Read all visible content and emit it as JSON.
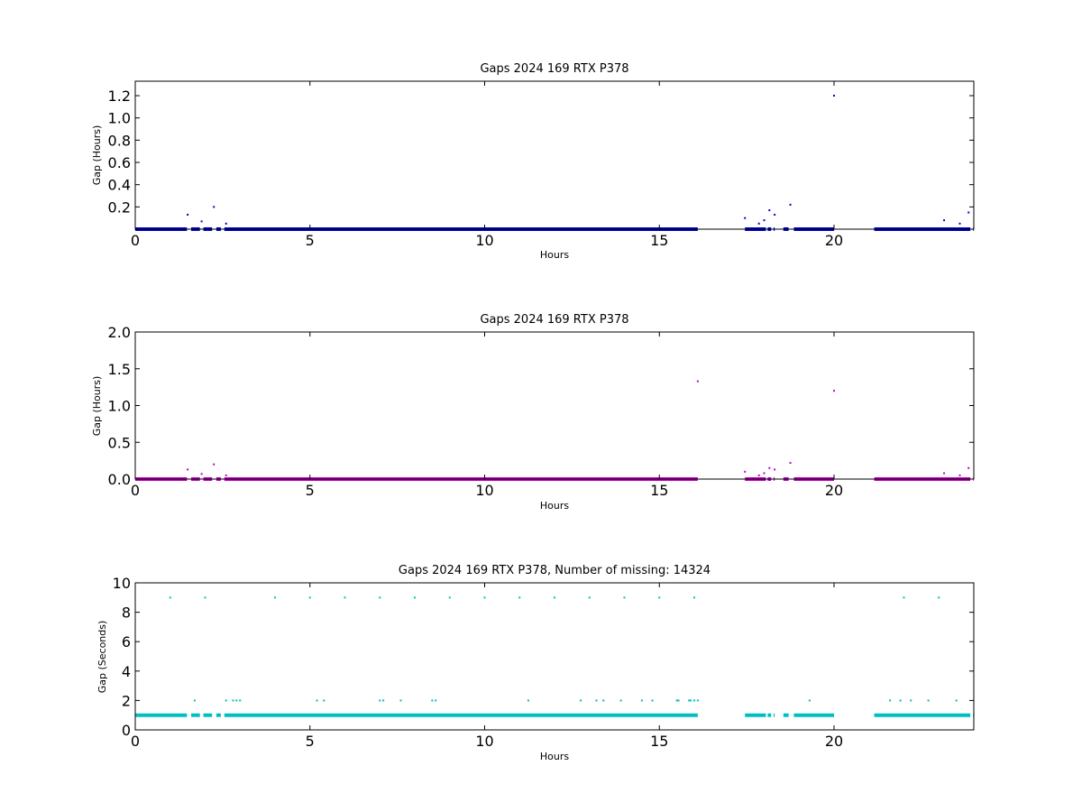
{
  "chart_data": [
    {
      "type": "scatter",
      "title": "Gaps 2024 169 RTX  P378",
      "xlabel": "Hours",
      "ylabel": "Gap (Hours)",
      "xlim": [
        0,
        24
      ],
      "ylim": [
        0,
        1.33
      ],
      "xticks": [
        0,
        5,
        10,
        15,
        20
      ],
      "xtick_labels": [
        "0",
        "5",
        "10",
        "15",
        "20"
      ],
      "yticks": [
        0.2,
        0.4,
        0.6,
        0.8,
        1.0,
        1.2
      ],
      "ytick_labels": [
        "0.2",
        "0.4",
        "0.6",
        "0.8",
        "1.0",
        "1.2"
      ],
      "color": "#0000cc",
      "grid": false,
      "baseline": {
        "y": 0.0003,
        "segments": [
          [
            0,
            1.48
          ],
          [
            1.6,
            1.85
          ],
          [
            1.95,
            2.2
          ],
          [
            2.32,
            2.45
          ],
          [
            2.55,
            16.1
          ],
          [
            17.45,
            18.05
          ],
          [
            18.1,
            18.2
          ],
          [
            18.27,
            18.3
          ],
          [
            18.55,
            18.7
          ],
          [
            18.85,
            20.0
          ],
          [
            21.15,
            23.9
          ],
          [
            23.98,
            24
          ]
        ]
      },
      "points": [
        [
          1.5,
          0.13
        ],
        [
          1.9,
          0.07
        ],
        [
          2.25,
          0.2
        ],
        [
          2.6,
          0.05
        ],
        [
          17.45,
          0.1
        ],
        [
          17.85,
          0.05
        ],
        [
          18.0,
          0.08
        ],
        [
          18.15,
          0.17
        ],
        [
          18.3,
          0.13
        ],
        [
          18.75,
          0.22
        ],
        [
          20.0,
          1.2
        ],
        [
          23.15,
          0.08
        ],
        [
          23.6,
          0.05
        ],
        [
          23.85,
          0.15
        ]
      ]
    },
    {
      "type": "scatter",
      "title": "Gaps 2024 169 RTX  P378",
      "xlabel": "Hours",
      "ylabel": "Gap (Hours)",
      "xlim": [
        0,
        24
      ],
      "ylim": [
        0,
        2.0
      ],
      "xticks": [
        0,
        5,
        10,
        15,
        20
      ],
      "xtick_labels": [
        "0",
        "5",
        "10",
        "15",
        "20"
      ],
      "yticks": [
        0.0,
        0.5,
        1.0,
        1.5,
        2.0
      ],
      "ytick_labels": [
        "0.0",
        "0.5",
        "1.0",
        "1.5",
        "2.0"
      ],
      "color": "#bf00bf",
      "grid": false,
      "baseline": {
        "y": 0.0003,
        "segments": [
          [
            0,
            1.48
          ],
          [
            1.6,
            1.85
          ],
          [
            1.95,
            2.2
          ],
          [
            2.32,
            2.45
          ],
          [
            2.55,
            16.1
          ],
          [
            17.45,
            18.05
          ],
          [
            18.1,
            18.2
          ],
          [
            18.27,
            18.3
          ],
          [
            18.55,
            18.7
          ],
          [
            18.85,
            20.0
          ],
          [
            21.15,
            23.9
          ],
          [
            23.98,
            24
          ]
        ]
      },
      "points": [
        [
          1.5,
          0.13
        ],
        [
          1.9,
          0.07
        ],
        [
          2.25,
          0.2
        ],
        [
          2.6,
          0.05
        ],
        [
          16.1,
          1.33
        ],
        [
          17.45,
          0.1
        ],
        [
          17.85,
          0.05
        ],
        [
          18.0,
          0.08
        ],
        [
          18.15,
          0.15
        ],
        [
          18.3,
          0.13
        ],
        [
          18.75,
          0.22
        ],
        [
          20.0,
          1.2
        ],
        [
          23.15,
          0.08
        ],
        [
          23.6,
          0.05
        ],
        [
          23.85,
          0.15
        ]
      ]
    },
    {
      "type": "scatter",
      "title": "Gaps 2024 169 RTX  P378, Number of missing: 14324",
      "xlabel": "Hours",
      "ylabel": "Gap (Seconds)",
      "xlim": [
        0,
        24
      ],
      "ylim": [
        0,
        10
      ],
      "xticks": [
        0,
        5,
        10,
        15,
        20
      ],
      "xtick_labels": [
        "0",
        "5",
        "10",
        "15",
        "20"
      ],
      "yticks": [
        0,
        2,
        4,
        6,
        8,
        10
      ],
      "ytick_labels": [
        "0",
        "2",
        "4",
        "6",
        "8",
        "10"
      ],
      "color": "#00bfbf",
      "grid": false,
      "baseline": {
        "y": 1,
        "segments": [
          [
            0,
            1.48
          ],
          [
            1.6,
            1.85
          ],
          [
            1.95,
            2.2
          ],
          [
            2.32,
            2.45
          ],
          [
            2.55,
            16.1
          ],
          [
            17.45,
            18.05
          ],
          [
            18.1,
            18.2
          ],
          [
            18.27,
            18.3
          ],
          [
            18.55,
            18.7
          ],
          [
            18.85,
            20.0
          ],
          [
            21.15,
            23.9
          ],
          [
            23.98,
            24
          ]
        ]
      },
      "points": [
        [
          1.0,
          9
        ],
        [
          2.0,
          9
        ],
        [
          4.0,
          9
        ],
        [
          5.0,
          9
        ],
        [
          6.0,
          9
        ],
        [
          7.0,
          9
        ],
        [
          8.0,
          9
        ],
        [
          9.0,
          9
        ],
        [
          10.0,
          9
        ],
        [
          11.0,
          9
        ],
        [
          12.0,
          9
        ],
        [
          13.0,
          9
        ],
        [
          14.0,
          9
        ],
        [
          15.0,
          9
        ],
        [
          16.0,
          9
        ],
        [
          22.0,
          9
        ],
        [
          23.0,
          9
        ],
        [
          1.7,
          2
        ],
        [
          2.6,
          2
        ],
        [
          2.8,
          2
        ],
        [
          2.9,
          2
        ],
        [
          3.0,
          2
        ],
        [
          5.2,
          2
        ],
        [
          5.4,
          2
        ],
        [
          7.0,
          2
        ],
        [
          7.1,
          2
        ],
        [
          7.6,
          2
        ],
        [
          8.5,
          2
        ],
        [
          8.6,
          2
        ],
        [
          11.25,
          2
        ],
        [
          12.75,
          2
        ],
        [
          13.2,
          2
        ],
        [
          13.4,
          2
        ],
        [
          13.9,
          2
        ],
        [
          14.5,
          2
        ],
        [
          14.8,
          2
        ],
        [
          15.5,
          2
        ],
        [
          15.55,
          2
        ],
        [
          15.85,
          2
        ],
        [
          15.9,
          2
        ],
        [
          16.0,
          2
        ],
        [
          16.1,
          2
        ],
        [
          19.3,
          2
        ],
        [
          21.6,
          2
        ],
        [
          21.9,
          2
        ],
        [
          22.2,
          2
        ],
        [
          22.7,
          2
        ],
        [
          23.5,
          2
        ]
      ]
    }
  ]
}
